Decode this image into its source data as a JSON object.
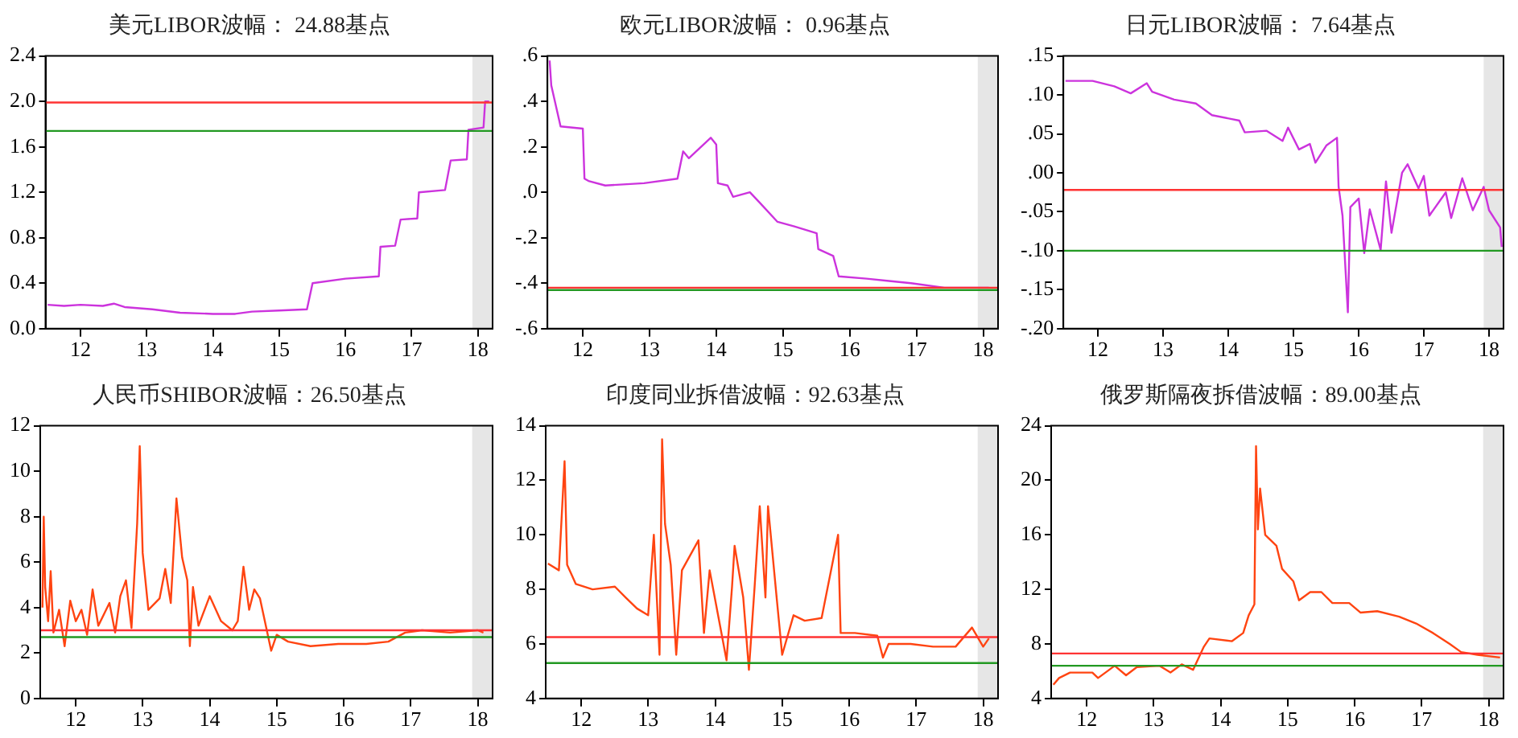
{
  "chart_data": [
    {
      "type": "line",
      "title": "美元LIBOR波幅： 24.88基点",
      "xlim": [
        "2011-12-20",
        "2018-09-20"
      ],
      "ylim": [
        0,
        2.4
      ],
      "xticks": [
        {
          "value": "2012-07-01",
          "label": "12"
        },
        {
          "value": "2013-07-01",
          "label": "13"
        },
        {
          "value": "2014-07-01",
          "label": "14"
        },
        {
          "value": "2015-07-01",
          "label": "15"
        },
        {
          "value": "2016-07-01",
          "label": "16"
        },
        {
          "value": "2017-07-01",
          "label": "17"
        },
        {
          "value": "2018-07-01",
          "label": "18"
        }
      ],
      "yticks": [
        {
          "value": 0,
          "label": "0.0"
        },
        {
          "value": 0.4,
          "label": "0.4"
        },
        {
          "value": 0.8,
          "label": "0.8"
        },
        {
          "value": 1.2,
          "label": "1.2"
        },
        {
          "value": 1.6,
          "label": "1.6"
        },
        {
          "value": 2.0,
          "label": "2.0"
        },
        {
          "value": 2.4,
          "label": "2.4"
        }
      ],
      "x": [
        "2012-01-01",
        "2012-04-01",
        "2012-07-01",
        "2012-11-01",
        "2013-01-01",
        "2013-03-01",
        "2013-08-01",
        "2014-01-01",
        "2014-07-01",
        "2014-11-01",
        "2015-02-01",
        "2015-07-01",
        "2015-12-01",
        "2016-01-01",
        "2016-07-01",
        "2017-01-01",
        "2017-01-10",
        "2017-04-01",
        "2017-05-01",
        "2017-08-01",
        "2017-08-10",
        "2018-01-01",
        "2018-02-01",
        "2018-05-01",
        "2018-05-10",
        "2018-08-01",
        "2018-08-10",
        "2018-09-01"
      ],
      "series": [
        {
          "color": "#cc33dd",
          "values": [
            0.21,
            0.2,
            0.21,
            0.2,
            0.22,
            0.19,
            0.17,
            0.14,
            0.13,
            0.13,
            0.15,
            0.16,
            0.17,
            0.4,
            0.44,
            0.46,
            0.72,
            0.73,
            0.96,
            0.97,
            1.2,
            1.22,
            1.48,
            1.49,
            1.75,
            1.77,
            2.0,
            2.0
          ]
        }
      ],
      "ref_lines": [
        {
          "axis": "y",
          "value": 1.99,
          "color": "#ff3333"
        },
        {
          "axis": "y",
          "value": 1.74,
          "color": "#229922"
        }
      ],
      "bands": [
        {
          "axis": "x",
          "from": "2018-06-01",
          "to": "2018-09-20",
          "color": "#e6e6e6"
        }
      ]
    },
    {
      "type": "line",
      "title": "欧元LIBOR波幅： 0.96基点",
      "xlim": [
        "2011-12-20",
        "2018-09-20"
      ],
      "ylim": [
        -0.6,
        0.6
      ],
      "xticks": [
        {
          "value": "2012-07-01",
          "label": "12"
        },
        {
          "value": "2013-07-01",
          "label": "13"
        },
        {
          "value": "2014-07-01",
          "label": "14"
        },
        {
          "value": "2015-07-01",
          "label": "15"
        },
        {
          "value": "2016-07-01",
          "label": "16"
        },
        {
          "value": "2017-07-01",
          "label": "17"
        },
        {
          "value": "2018-07-01",
          "label": "18"
        }
      ],
      "yticks": [
        {
          "value": -0.6,
          "label": "-.6"
        },
        {
          "value": -0.4,
          "label": "-.4"
        },
        {
          "value": -0.2,
          "label": "-.2"
        },
        {
          "value": 0,
          "label": ".0"
        },
        {
          "value": 0.2,
          "label": ".2"
        },
        {
          "value": 0.4,
          "label": ".4"
        },
        {
          "value": 0.6,
          "label": ".6"
        }
      ],
      "x": [
        "2012-01-01",
        "2012-01-10",
        "2012-03-01",
        "2012-07-01",
        "2012-07-10",
        "2012-08-01",
        "2012-11-01",
        "2013-06-01",
        "2013-12-01",
        "2014-01-01",
        "2014-02-01",
        "2014-06-01",
        "2014-07-01",
        "2014-07-10",
        "2014-09-01",
        "2014-10-01",
        "2015-01-01",
        "2015-03-01",
        "2015-06-01",
        "2015-09-01",
        "2016-01-01",
        "2016-01-10",
        "2016-04-01",
        "2016-05-01",
        "2016-10-01",
        "2017-02-01",
        "2017-06-01",
        "2017-12-01",
        "2018-08-01"
      ],
      "series": [
        {
          "color": "#cc33dd",
          "values": [
            0.58,
            0.47,
            0.29,
            0.28,
            0.06,
            0.05,
            0.03,
            0.04,
            0.06,
            0.18,
            0.15,
            0.24,
            0.21,
            0.04,
            0.03,
            -0.02,
            0.0,
            -0.05,
            -0.13,
            -0.15,
            -0.18,
            -0.25,
            -0.28,
            -0.37,
            -0.38,
            -0.39,
            -0.4,
            -0.42,
            -0.42
          ]
        }
      ],
      "ref_lines": [
        {
          "axis": "y",
          "value": -0.42,
          "color": "#ff3333"
        },
        {
          "axis": "y",
          "value": -0.43,
          "color": "#229922"
        }
      ],
      "bands": [
        {
          "axis": "x",
          "from": "2018-06-01",
          "to": "2018-09-20",
          "color": "#e6e6e6"
        }
      ]
    },
    {
      "type": "line",
      "title": "日元LIBOR波幅： 7.64基点",
      "xlim": [
        "2011-12-20",
        "2018-09-20"
      ],
      "ylim": [
        -0.2,
        0.15
      ],
      "xticks": [
        {
          "value": "2012-07-01",
          "label": "12"
        },
        {
          "value": "2013-07-01",
          "label": "13"
        },
        {
          "value": "2014-07-01",
          "label": "14"
        },
        {
          "value": "2015-07-01",
          "label": "15"
        },
        {
          "value": "2016-07-01",
          "label": "16"
        },
        {
          "value": "2017-07-01",
          "label": "17"
        },
        {
          "value": "2018-07-01",
          "label": "18"
        }
      ],
      "yticks": [
        {
          "value": -0.2,
          "label": "-.20"
        },
        {
          "value": -0.15,
          "label": "-.15"
        },
        {
          "value": -0.1,
          "label": "-.10"
        },
        {
          "value": -0.05,
          "label": "-.05"
        },
        {
          "value": 0,
          "label": ".00"
        },
        {
          "value": 0.05,
          "label": ".05"
        },
        {
          "value": 0.1,
          "label": ".10"
        },
        {
          "value": 0.15,
          "label": ".15"
        }
      ],
      "x": [
        "2012-01-01",
        "2012-06-01",
        "2012-10-01",
        "2013-01-01",
        "2013-04-01",
        "2013-05-01",
        "2013-09-01",
        "2014-01-01",
        "2014-04-01",
        "2014-09-01",
        "2014-10-01",
        "2015-02-01",
        "2015-05-01",
        "2015-06-01",
        "2015-08-01",
        "2015-10-01",
        "2015-11-01",
        "2016-01-01",
        "2016-03-01",
        "2016-03-10",
        "2016-04-01",
        "2016-05-01",
        "2016-05-15",
        "2016-07-01",
        "2016-08-01",
        "2016-09-01",
        "2016-11-01",
        "2016-12-01",
        "2017-01-01",
        "2017-03-01",
        "2017-04-01",
        "2017-06-01",
        "2017-07-01",
        "2017-08-01",
        "2017-11-01",
        "2017-12-01",
        "2018-02-01",
        "2018-04-01",
        "2018-06-01",
        "2018-07-01",
        "2018-09-01",
        "2018-09-10"
      ],
      "series": [
        {
          "color": "#cc33dd",
          "values": [
            0.118,
            0.118,
            0.111,
            0.102,
            0.115,
            0.104,
            0.094,
            0.089,
            0.074,
            0.067,
            0.052,
            0.054,
            0.041,
            0.058,
            0.03,
            0.037,
            0.013,
            0.035,
            0.045,
            -0.018,
            -0.055,
            -0.179,
            -0.044,
            -0.033,
            -0.103,
            -0.047,
            -0.099,
            -0.011,
            -0.077,
            0.0,
            0.011,
            -0.02,
            -0.004,
            -0.055,
            -0.025,
            -0.058,
            -0.007,
            -0.048,
            -0.018,
            -0.048,
            -0.07,
            -0.095
          ]
        }
      ],
      "ref_lines": [
        {
          "axis": "y",
          "value": -0.022,
          "color": "#ff3333"
        },
        {
          "axis": "y",
          "value": -0.1,
          "color": "#229922"
        }
      ],
      "bands": [
        {
          "axis": "x",
          "from": "2018-06-01",
          "to": "2018-09-20",
          "color": "#e6e6e6"
        }
      ]
    },
    {
      "type": "line",
      "title": "人民币SHIBOR波幅：26.50基点",
      "xlim": [
        "2011-12-20",
        "2018-09-20"
      ],
      "ylim": [
        0,
        12
      ],
      "xticks": [
        {
          "value": "2012-07-01",
          "label": "12"
        },
        {
          "value": "2013-07-01",
          "label": "13"
        },
        {
          "value": "2014-07-01",
          "label": "14"
        },
        {
          "value": "2015-07-01",
          "label": "15"
        },
        {
          "value": "2016-07-01",
          "label": "16"
        },
        {
          "value": "2017-07-01",
          "label": "17"
        },
        {
          "value": "2018-07-01",
          "label": "18"
        }
      ],
      "yticks": [
        0,
        2,
        4,
        6,
        8,
        10,
        12
      ],
      "x": [
        "2012-01-01",
        "2012-01-08",
        "2012-01-16",
        "2012-02-01",
        "2012-02-15",
        "2012-03-01",
        "2012-04-01",
        "2012-05-01",
        "2012-06-01",
        "2012-07-01",
        "2012-08-01",
        "2012-09-01",
        "2012-10-01",
        "2012-11-01",
        "2013-01-01",
        "2013-02-01",
        "2013-03-01",
        "2013-04-01",
        "2013-05-01",
        "2013-06-01",
        "2013-06-15",
        "2013-07-01",
        "2013-08-01",
        "2013-10-01",
        "2013-11-01",
        "2013-12-01",
        "2014-01-01",
        "2014-02-01",
        "2014-03-01",
        "2014-03-15",
        "2014-04-01",
        "2014-05-01",
        "2014-07-01",
        "2014-09-01",
        "2014-11-01",
        "2014-12-01",
        "2015-01-01",
        "2015-02-01",
        "2015-03-01",
        "2015-04-01",
        "2015-06-01",
        "2015-07-01",
        "2015-09-01",
        "2016-01-01",
        "2016-06-01",
        "2016-11-01",
        "2017-03-01",
        "2017-06-01",
        "2017-09-01",
        "2018-02-01",
        "2018-07-01",
        "2018-08-01"
      ],
      "series": [
        {
          "color": "#ff4411",
          "values": [
            4.0,
            8.0,
            4.9,
            3.4,
            5.6,
            2.9,
            3.9,
            2.3,
            4.3,
            3.4,
            3.9,
            2.8,
            4.8,
            3.2,
            4.2,
            2.9,
            4.5,
            5.2,
            3.1,
            7.7,
            11.1,
            6.4,
            3.9,
            4.4,
            5.7,
            4.2,
            8.8,
            6.2,
            5.2,
            2.3,
            4.9,
            3.2,
            4.5,
            3.4,
            3.0,
            3.4,
            5.8,
            3.9,
            4.8,
            4.4,
            2.1,
            2.8,
            2.5,
            2.3,
            2.4,
            2.4,
            2.5,
            2.9,
            3.0,
            2.9,
            3.0,
            2.9
          ]
        }
      ],
      "ref_lines": [
        {
          "axis": "y",
          "value": 3.0,
          "color": "#ff3333"
        },
        {
          "axis": "y",
          "value": 2.7,
          "color": "#229922"
        }
      ],
      "bands": [
        {
          "axis": "x",
          "from": "2018-06-01",
          "to": "2018-09-20",
          "color": "#e6e6e6"
        }
      ]
    },
    {
      "type": "line",
      "title": "印度同业拆借波幅：92.63基点",
      "xlim": [
        "2011-12-20",
        "2018-09-20"
      ],
      "ylim": [
        4,
        14
      ],
      "xticks": [
        {
          "value": "2012-07-01",
          "label": "12"
        },
        {
          "value": "2013-07-01",
          "label": "13"
        },
        {
          "value": "2014-07-01",
          "label": "14"
        },
        {
          "value": "2015-07-01",
          "label": "15"
        },
        {
          "value": "2016-07-01",
          "label": "16"
        },
        {
          "value": "2017-07-01",
          "label": "17"
        },
        {
          "value": "2018-07-01",
          "label": "18"
        }
      ],
      "yticks": [
        4,
        6,
        8,
        10,
        12,
        14
      ],
      "x": [
        "2012-01-01",
        "2012-03-01",
        "2012-04-01",
        "2012-04-15",
        "2012-06-01",
        "2012-09-01",
        "2013-01-01",
        "2013-03-01",
        "2013-05-01",
        "2013-07-01",
        "2013-08-01",
        "2013-09-01",
        "2013-09-15",
        "2013-10-01",
        "2013-11-01",
        "2013-12-01",
        "2014-01-01",
        "2014-04-01",
        "2014-05-01",
        "2014-06-01",
        "2014-09-01",
        "2014-10-01",
        "2014-10-15",
        "2014-12-01",
        "2015-01-01",
        "2015-02-01",
        "2015-03-01",
        "2015-04-01",
        "2015-04-15",
        "2015-06-01",
        "2015-07-01",
        "2015-09-01",
        "2015-11-01",
        "2016-02-01",
        "2016-05-01",
        "2016-05-15",
        "2016-08-01",
        "2016-12-01",
        "2017-01-01",
        "2017-02-01",
        "2017-06-01",
        "2017-10-01",
        "2018-02-01",
        "2018-05-01",
        "2018-07-01",
        "2018-08-01"
      ],
      "series": [
        {
          "color": "#ff4411",
          "values": [
            8.95,
            8.7,
            12.7,
            8.9,
            8.2,
            8.0,
            8.1,
            7.7,
            7.3,
            7.05,
            10.0,
            5.6,
            13.5,
            10.4,
            8.9,
            5.6,
            8.7,
            9.8,
            6.4,
            8.7,
            5.4,
            8.1,
            9.6,
            7.7,
            5.05,
            8.1,
            11.05,
            7.7,
            11.05,
            7.7,
            5.6,
            7.05,
            6.85,
            6.95,
            10.0,
            6.4,
            6.4,
            6.3,
            5.5,
            6.0,
            6.0,
            5.9,
            5.9,
            6.6,
            5.9,
            6.2
          ]
        }
      ],
      "ref_lines": [
        {
          "axis": "y",
          "value": 6.25,
          "color": "#ff3333"
        },
        {
          "axis": "y",
          "value": 5.3,
          "color": "#229922"
        }
      ],
      "bands": [
        {
          "axis": "x",
          "from": "2018-06-01",
          "to": "2018-09-20",
          "color": "#e6e6e6"
        }
      ]
    },
    {
      "type": "line",
      "title": "俄罗斯隔夜拆借波幅：89.00基点",
      "xlim": [
        "2011-12-20",
        "2018-09-20"
      ],
      "ylim": [
        4,
        24
      ],
      "xticks": [
        {
          "value": "2012-07-01",
          "label": "12"
        },
        {
          "value": "2013-07-01",
          "label": "13"
        },
        {
          "value": "2014-07-01",
          "label": "14"
        },
        {
          "value": "2015-07-01",
          "label": "15"
        },
        {
          "value": "2016-07-01",
          "label": "16"
        },
        {
          "value": "2017-07-01",
          "label": "17"
        },
        {
          "value": "2018-07-01",
          "label": "18"
        }
      ],
      "yticks": [
        4,
        8,
        12,
        16,
        20,
        24
      ],
      "x": [
        "2012-01-01",
        "2012-02-01",
        "2012-04-01",
        "2012-08-01",
        "2012-09-01",
        "2012-12-01",
        "2013-02-01",
        "2013-04-01",
        "2013-08-01",
        "2013-10-01",
        "2013-12-01",
        "2014-02-01",
        "2014-04-01",
        "2014-05-01",
        "2014-09-01",
        "2014-11-01",
        "2014-12-01",
        "2015-01-01",
        "2015-01-10",
        "2015-01-20",
        "2015-02-01",
        "2015-03-01",
        "2015-05-01",
        "2015-06-01",
        "2015-08-01",
        "2015-09-01",
        "2015-11-01",
        "2016-01-01",
        "2016-03-01",
        "2016-06-01",
        "2016-08-01",
        "2016-11-01",
        "2017-03-01",
        "2017-06-01",
        "2017-09-01",
        "2017-12-01",
        "2018-02-01",
        "2018-05-01",
        "2018-09-01"
      ],
      "series": [
        {
          "color": "#ff4411",
          "values": [
            5.0,
            5.5,
            5.9,
            5.9,
            5.5,
            6.4,
            5.7,
            6.3,
            6.4,
            5.9,
            6.5,
            6.1,
            7.8,
            8.4,
            8.2,
            8.8,
            10.1,
            10.9,
            22.5,
            16.4,
            19.4,
            16.0,
            15.2,
            13.5,
            12.6,
            11.2,
            11.8,
            11.8,
            11.0,
            11.0,
            10.3,
            10.4,
            10.0,
            9.5,
            8.8,
            8.0,
            7.4,
            7.2,
            7.0
          ]
        }
      ],
      "ref_lines": [
        {
          "axis": "y",
          "value": 7.3,
          "color": "#ff3333"
        },
        {
          "axis": "y",
          "value": 6.4,
          "color": "#229922"
        }
      ],
      "bands": [
        {
          "axis": "x",
          "from": "2018-06-01",
          "to": "2018-09-20",
          "color": "#e6e6e6"
        }
      ]
    }
  ]
}
